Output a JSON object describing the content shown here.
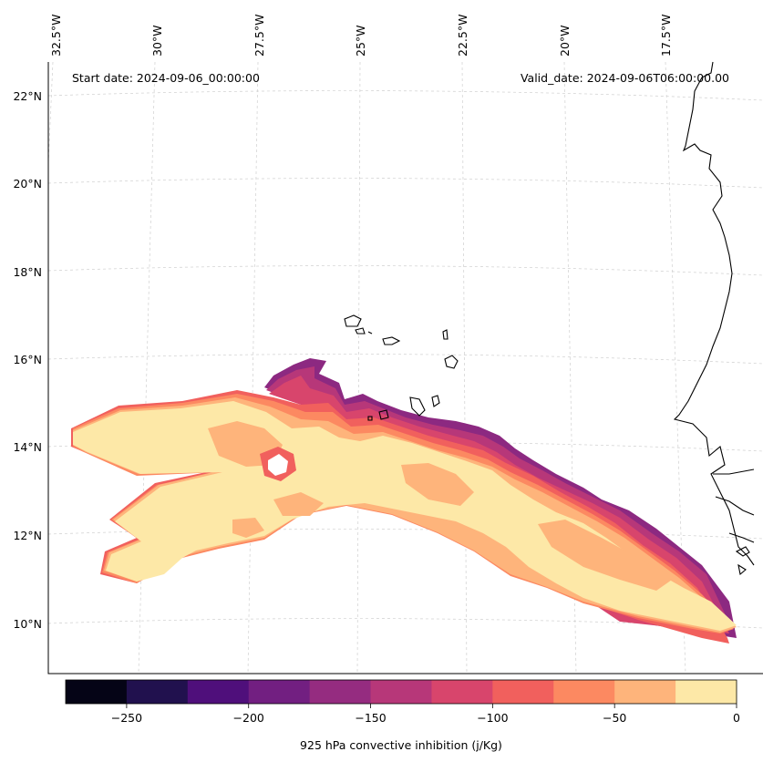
{
  "map": {
    "start_date": "Start date: 2024-09-06_00:00:00",
    "valid_date": "Valid_date: 2024-09-06T06:00:00.00",
    "longitude_labels": [
      "32.5°W",
      "30°W",
      "27.5°W",
      "25°W",
      "22.5°W",
      "20°W",
      "17.5°W"
    ],
    "latitude_labels": [
      "22°N",
      "20°N",
      "18°N",
      "16°N",
      "14°N",
      "12°N",
      "10°N"
    ]
  },
  "colorbar": {
    "label": "925 hPa convective inhibition (j/Kg)",
    "tick_labels": [
      "−250",
      "−200",
      "−150",
      "−100",
      "−50",
      "0"
    ],
    "range": [
      -275,
      0
    ],
    "levels": [
      -275,
      -250,
      -225,
      -200,
      -175,
      -150,
      -125,
      -100,
      -75,
      -50,
      -25,
      0
    ],
    "colors": [
      "#050416",
      "#21114e",
      "#4f0f7b",
      "#721f81",
      "#952c80",
      "#b73779",
      "#d8456c",
      "#f1605d",
      "#fc8961",
      "#feb47b",
      "#fde8a7"
    ]
  }
}
